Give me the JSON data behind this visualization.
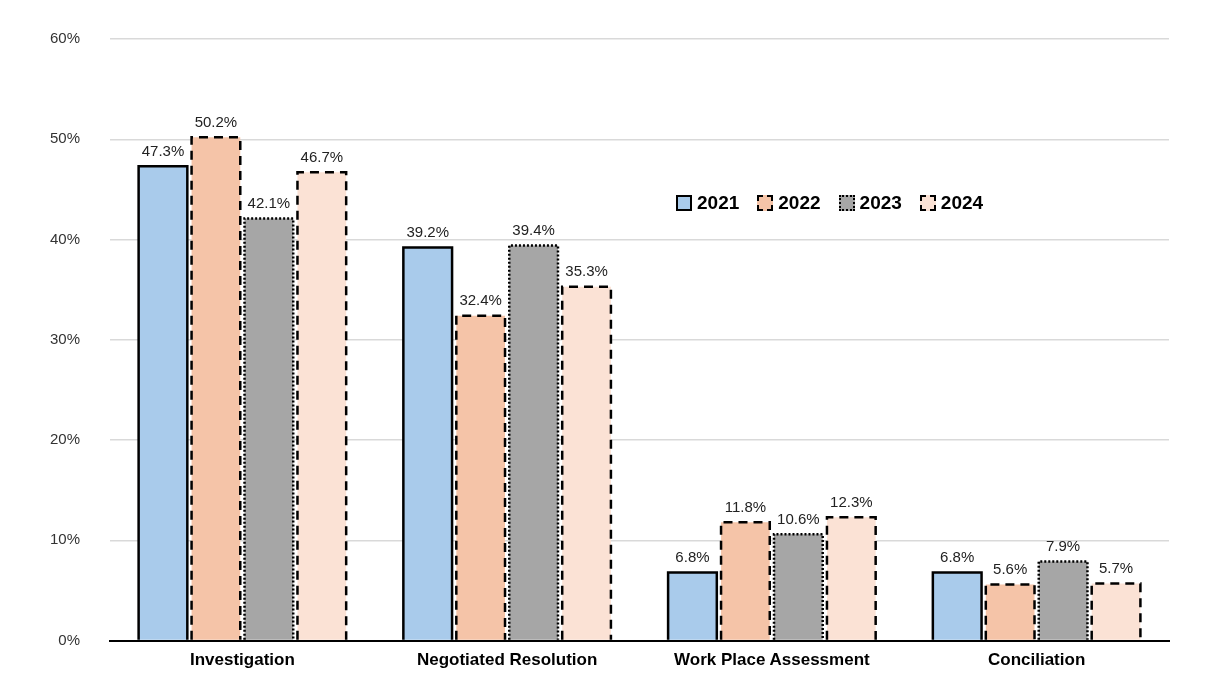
{
  "chart_data": {
    "type": "bar",
    "categories": [
      "Investigation",
      "Negotiated Resolution",
      "Work Place Assessment",
      "Conciliation"
    ],
    "series": [
      {
        "name": "2021",
        "color": "#a9cbeb",
        "line_style": "solid",
        "values": [
          47.3,
          39.2,
          6.8,
          6.8
        ],
        "value_labels": [
          "47.3%",
          "39.2%",
          "6.8%",
          "6.8%"
        ]
      },
      {
        "name": "2022",
        "color": "#f5c4a8",
        "line_style": "dashed",
        "values": [
          50.2,
          32.4,
          11.8,
          5.6
        ],
        "value_labels": [
          "50.2%",
          "32.4%",
          "11.8%",
          "5.6%"
        ]
      },
      {
        "name": "2023",
        "color": "#a6a6a6",
        "line_style": "dotted",
        "values": [
          42.1,
          39.4,
          10.6,
          7.9
        ],
        "value_labels": [
          "42.1%",
          "39.4%",
          "10.6%",
          "7.9%"
        ]
      },
      {
        "name": "2024",
        "color": "#fbe2d5",
        "line_style": "dashed",
        "values": [
          46.7,
          35.3,
          12.3,
          5.7
        ],
        "value_labels": [
          "46.7%",
          "35.3%",
          "12.3%",
          "5.7%"
        ]
      }
    ],
    "ylim": [
      0,
      60
    ],
    "yticks": [
      {
        "value": 0,
        "label": "0%"
      },
      {
        "value": 10,
        "label": "10%"
      },
      {
        "value": 20,
        "label": "20%"
      },
      {
        "value": 30,
        "label": "30%"
      },
      {
        "value": 40,
        "label": "40%"
      },
      {
        "value": 50,
        "label": "50%"
      },
      {
        "value": 60,
        "label": "60%"
      }
    ],
    "grid": "y",
    "legend": "top right"
  }
}
